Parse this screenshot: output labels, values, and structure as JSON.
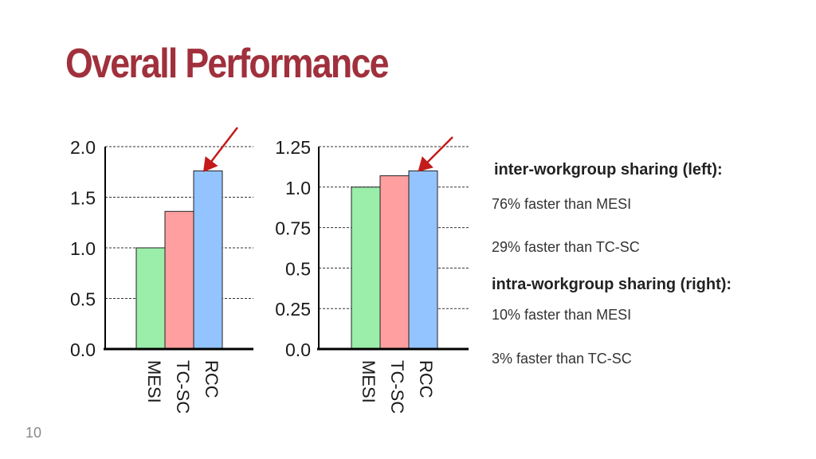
{
  "slide": {
    "title": "Overall Performance",
    "page_number": "10",
    "title_color": "#a0303c"
  },
  "notes": {
    "inter_heading": "inter-workgroup sharing (left):",
    "inter_vs_mesi": "76% faster than MESI",
    "inter_vs_tcsc": "29% faster than  TC-SC",
    "intra_heading": "intra-workgroup sharing (right):",
    "intra_vs_mesi": "10% faster than MESI",
    "intra_vs_tcsc": "3% faster than TC-SC"
  },
  "chart_data": [
    {
      "type": "bar",
      "title": "",
      "xlabel": "",
      "ylabel": "",
      "categories": [
        "MESI",
        "TC-SC",
        "RCC"
      ],
      "values": [
        1.0,
        1.36,
        1.76
      ],
      "ylim": [
        0,
        2.0
      ],
      "ticks": [
        0.0,
        0.5,
        1.0,
        1.5,
        2.0
      ],
      "tick_labels": [
        "0.0",
        "0.5",
        "1.0",
        "1.5",
        "2.0"
      ],
      "grid": "dashed horizontal",
      "highlight": "RCC"
    },
    {
      "type": "bar",
      "title": "",
      "xlabel": "",
      "ylabel": "",
      "categories": [
        "MESI",
        "TC-SC",
        "RCC"
      ],
      "values": [
        1.0,
        1.07,
        1.1
      ],
      "ylim": [
        0,
        1.25
      ],
      "ticks": [
        0.0,
        0.25,
        0.5,
        0.75,
        1.0,
        1.25
      ],
      "tick_labels": [
        "0.0",
        "0.25",
        "0.5",
        "0.75",
        "1.0",
        "1.25"
      ],
      "grid": "dashed horizontal",
      "highlight": "RCC"
    }
  ],
  "colors": {
    "bars": [
      "#9aeeaa",
      "#ff9f9f",
      "#93c4ff"
    ],
    "arrow": "#c41a1a",
    "grid": "#333333",
    "axis": "#000000"
  }
}
